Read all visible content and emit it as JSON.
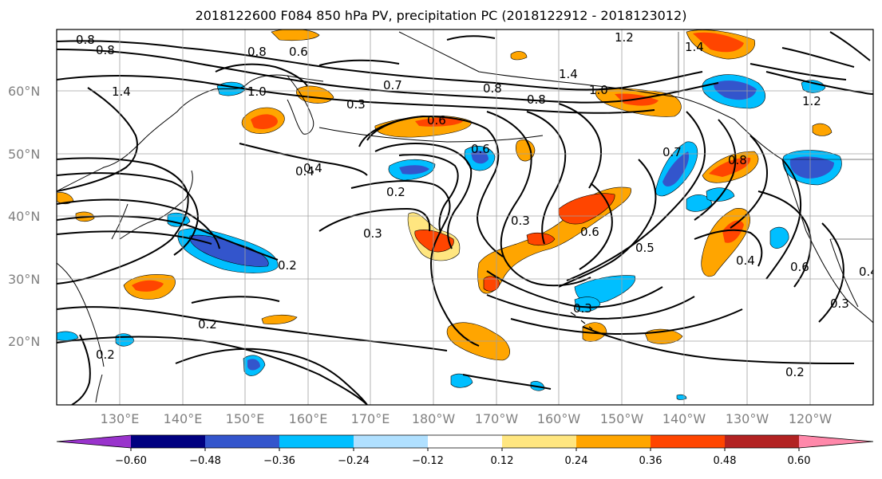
{
  "title": "2018122600 F084 850 hPa PV, precipitation PC (2018122912 - 2018123012)",
  "map": {
    "lat_ticks": [
      "60°N",
      "50°N",
      "40°N",
      "30°N",
      "20°N"
    ],
    "lon_ticks": [
      "130°E",
      "140°E",
      "150°E",
      "160°E",
      "170°E",
      "180°W",
      "170°W",
      "160°W",
      "150°W",
      "140°W",
      "130°W",
      "120°W"
    ],
    "grid": true
  },
  "colorbar": {
    "colors": [
      "#9933cc",
      "#000080",
      "#3355cc",
      "#00bfff",
      "#b0e0ff",
      "#ffffff",
      "#ffe680",
      "#ffa500",
      "#ff4500",
      "#b22222",
      "#ff88aa"
    ],
    "tick_labels": [
      "−0.60",
      "−0.48",
      "−0.36",
      "−0.24",
      "−0.12",
      "0.12",
      "0.24",
      "0.36",
      "0.48",
      "0.60"
    ],
    "extend": "both"
  },
  "contour_labels": [
    "0.8",
    "0.8",
    "0.8",
    "0.6",
    "1.2",
    "1.4",
    "1.4",
    "1.4",
    "1.0",
    "1.0",
    "0.7",
    "0.3",
    "0.6",
    "0.8",
    "0.8",
    "0.6",
    "1.2",
    "0.4",
    "0.2",
    "0.7",
    "0.8",
    "0.3",
    "0.3",
    "0.6",
    "0.5",
    "0.4",
    "0.6",
    "0.4",
    "0.2",
    "0.2",
    "0.3",
    "0.2",
    "0.2",
    "0.3",
    "0.4"
  ]
}
